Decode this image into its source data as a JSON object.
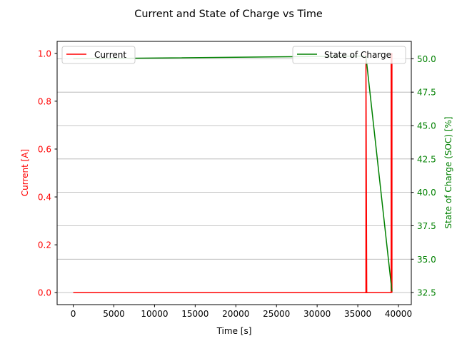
{
  "chart_data": {
    "type": "line",
    "title": "Current and State of Charge vs Time",
    "xlabel": "Time [s]",
    "xlim": [
      -1980,
      41580
    ],
    "xticks": [
      "0",
      "5000",
      "10000",
      "15000",
      "20000",
      "25000",
      "30000",
      "35000",
      "40000"
    ],
    "left_axis": {
      "label": "Current [A]",
      "color": "#ff0000",
      "ylim": [
        -0.05,
        1.05
      ],
      "ticks": [
        "0.0",
        "0.2",
        "0.4",
        "0.6",
        "0.8",
        "1.0"
      ]
    },
    "right_axis": {
      "label": "State of Charge (SOC) [%]",
      "color": "#008000",
      "ylim": [
        31.6,
        51.3
      ],
      "ticks": [
        "32.5",
        "35.0",
        "37.5",
        "40.0",
        "42.5",
        "45.0",
        "47.5",
        "50.0"
      ]
    },
    "grid": "horizontal, right axis",
    "series": [
      {
        "name": "Current",
        "axis": "left",
        "color": "#ff0000",
        "x": [
          0,
          36000,
          36000,
          36100,
          39100,
          39100,
          39200,
          39200
        ],
        "y": [
          0,
          0,
          1,
          0,
          0,
          1,
          1,
          0
        ]
      },
      {
        "name": "State of Charge",
        "axis": "right",
        "color": "#008000",
        "x": [
          0,
          36000,
          39200
        ],
        "y": [
          50.0,
          50.2,
          32.6
        ]
      }
    ],
    "legends": [
      {
        "position": "upper-left",
        "entries": [
          "Current"
        ]
      },
      {
        "position": "upper-right",
        "entries": [
          "State of Charge"
        ]
      }
    ]
  }
}
